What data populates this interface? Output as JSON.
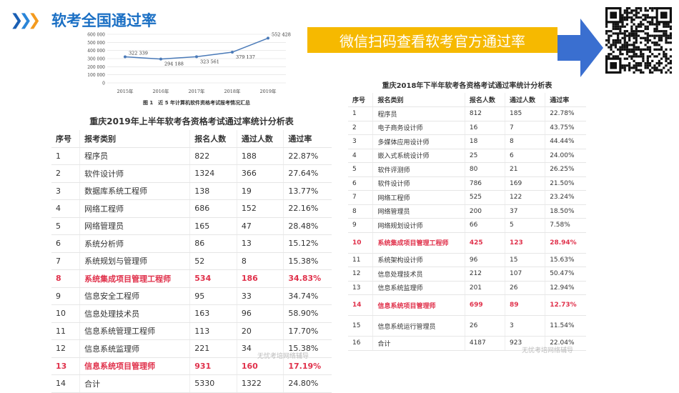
{
  "header": {
    "title": "软考全国通过率",
    "icon": "triple-chevron-icon"
  },
  "banner": {
    "text": "微信扫码查看软考官方通过率",
    "color": "#f6b900"
  },
  "qr": {
    "icon": "qr-code"
  },
  "chart_data": {
    "type": "line",
    "title": "图 1　近 5 年计算机软件资格考试报考情况汇总",
    "categories": [
      "2015年",
      "2016年",
      "2017年",
      "2018年",
      "2019年"
    ],
    "values": [
      322339,
      294188,
      323561,
      379137,
      552428
    ],
    "data_labels": [
      "322 339",
      "294 188",
      "323 561",
      "379 137",
      "552 428"
    ],
    "yticks": [
      "0",
      "100 000",
      "200 000",
      "300 000",
      "400 000",
      "500 000",
      "600 000"
    ],
    "ylim": [
      0,
      600000
    ],
    "grid": true,
    "color": "#4a7ab8"
  },
  "left_table": {
    "caption": "重庆2019年上半年软考各资格考试通过率统计分析表",
    "headers": [
      "序号",
      "报考类别",
      "报名人数",
      "通过人数",
      "通过率"
    ],
    "rows": [
      [
        "1",
        "程序员",
        "822",
        "188",
        "22.87%"
      ],
      [
        "2",
        "软件设计师",
        "1324",
        "366",
        "27.64%"
      ],
      [
        "3",
        "数据库系统工程师",
        "138",
        "19",
        "13.77%"
      ],
      [
        "4",
        "网络工程师",
        "686",
        "152",
        "22.16%"
      ],
      [
        "5",
        "网络管理员",
        "165",
        "47",
        "28.48%"
      ],
      [
        "6",
        "系统分析师",
        "86",
        "13",
        "15.12%"
      ],
      [
        "7",
        "系统规划与管理师",
        "52",
        "8",
        "15.38%"
      ],
      [
        "8",
        "系统集成项目管理工程师",
        "534",
        "186",
        "34.83%"
      ],
      [
        "9",
        "信息安全工程师",
        "95",
        "33",
        "34.74%"
      ],
      [
        "10",
        "信息处理技术员",
        "163",
        "96",
        "58.90%"
      ],
      [
        "11",
        "信息系统管理工程师",
        "113",
        "20",
        "17.70%"
      ],
      [
        "12",
        "信息系统监理师",
        "221",
        "34",
        "15.38%"
      ],
      [
        "13",
        "信息系统项目管理师",
        "931",
        "160",
        "17.19%"
      ],
      [
        "14",
        "合计",
        "5330",
        "1322",
        "24.80%"
      ]
    ],
    "highlight_rows": [
      7,
      12
    ],
    "watermark": "无忧考培网络辅导"
  },
  "right_table": {
    "caption": "重庆2018年下半年软考各资格考试通过率统计分析表",
    "headers": [
      "序号",
      "报名类别",
      "报名人数",
      "通过人数",
      "通过率"
    ],
    "rows": [
      [
        "1",
        "程序员",
        "812",
        "185",
        "22.78%"
      ],
      [
        "2",
        "电子商务设计师",
        "16",
        "7",
        "43.75%"
      ],
      [
        "3",
        "多媒体应用设计师",
        "18",
        "8",
        "44.44%"
      ],
      [
        "4",
        "嵌入式系统设计师",
        "25",
        "6",
        "24.00%"
      ],
      [
        "5",
        "软件评测师",
        "80",
        "21",
        "26.25%"
      ],
      [
        "6",
        "软件设计师",
        "786",
        "169",
        "21.50%"
      ],
      [
        "7",
        "网络工程师",
        "525",
        "122",
        "23.24%"
      ],
      [
        "8",
        "网络管理员",
        "200",
        "37",
        "18.50%"
      ],
      [
        "9",
        "网络规划设计师",
        "66",
        "5",
        "7.58%"
      ],
      [
        "10",
        "系统集成项目管理工程师",
        "425",
        "123",
        "28.94%"
      ],
      [
        "11",
        "系统架构设计师",
        "96",
        "15",
        "15.63%"
      ],
      [
        "12",
        "信息处理技术员",
        "212",
        "107",
        "50.47%"
      ],
      [
        "13",
        "信息系统监理师",
        "201",
        "26",
        "12.94%"
      ],
      [
        "14",
        "信息系统项目管理师",
        "699",
        "89",
        "12.73%"
      ],
      [
        "15",
        "信息系统运行管理员",
        "26",
        "3",
        "11.54%"
      ],
      [
        "16",
        "合计",
        "4187",
        "923",
        "22.04%"
      ]
    ],
    "highlight_rows": [
      9,
      13
    ],
    "tall_rows": [
      9,
      13,
      14
    ],
    "watermark": "无忧考培网络辅导"
  }
}
